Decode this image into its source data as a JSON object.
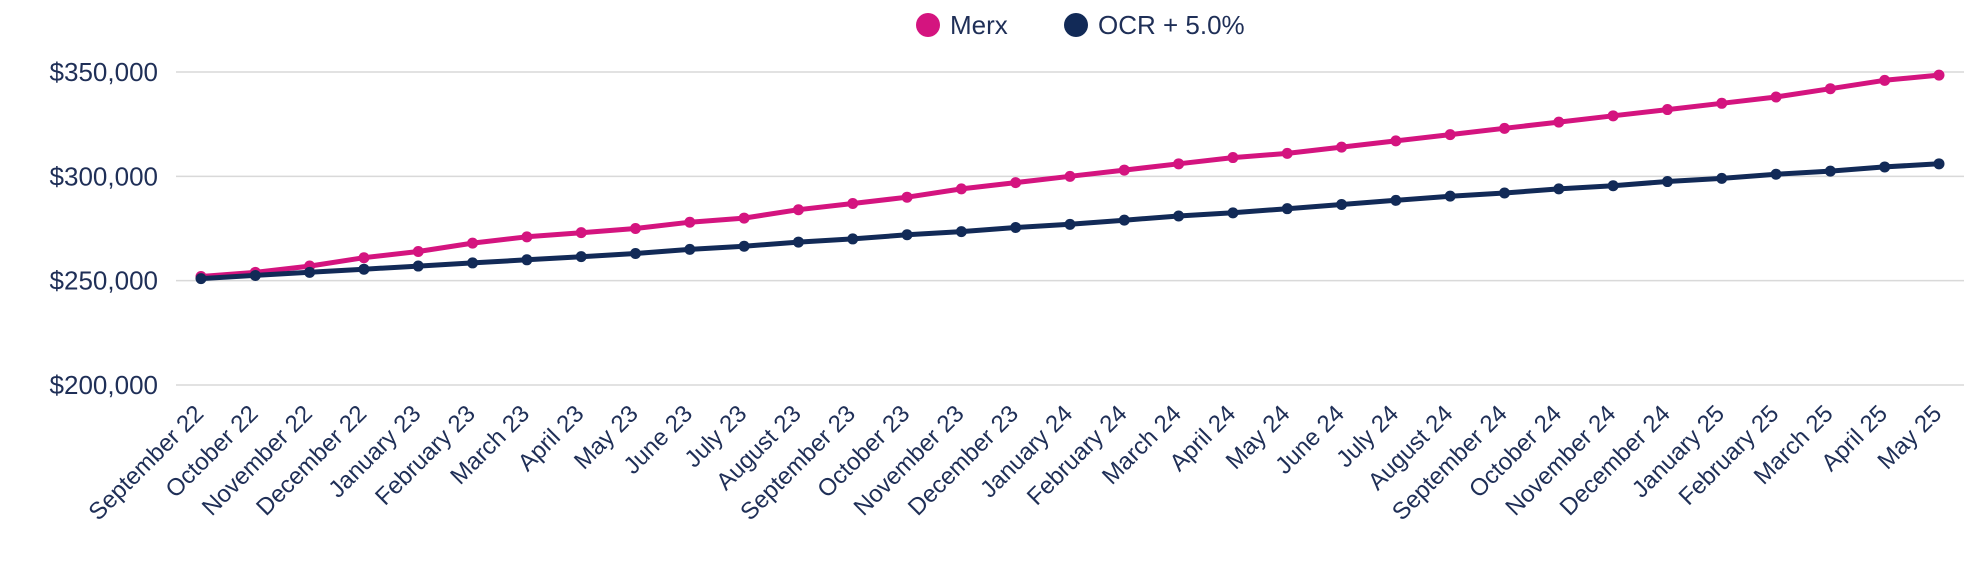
{
  "chart_data": {
    "type": "line",
    "title": "",
    "xlabel": "",
    "ylabel": "",
    "ylim": [
      200000,
      350000
    ],
    "yticks": [
      {
        "value": 200000,
        "label": "$200,000"
      },
      {
        "value": 250000,
        "label": "$250,000"
      },
      {
        "value": 300000,
        "label": "$300,000"
      },
      {
        "value": 350000,
        "label": "$350,000"
      }
    ],
    "grid": true,
    "legend_position": "top-center",
    "x": [
      "September 22",
      "October 22",
      "November 22",
      "December 22",
      "January 23",
      "February 23",
      "March 23",
      "April 23",
      "May 23",
      "June 23",
      "July 23",
      "August 23",
      "September 23",
      "October 23",
      "November 23",
      "December 23",
      "January 24",
      "February 24",
      "March 24",
      "April 24",
      "May 24",
      "June 24",
      "July 24",
      "August 24",
      "September 24",
      "October 24",
      "November 24",
      "December 24",
      "January 25",
      "February 25",
      "March 25",
      "April 25",
      "May 25"
    ],
    "series": [
      {
        "name": "Merx",
        "color": "#d4147f",
        "values": [
          252000,
          254000,
          257000,
          261000,
          264000,
          268000,
          271000,
          273000,
          275000,
          278000,
          280000,
          284000,
          287000,
          290000,
          294000,
          297000,
          300000,
          303000,
          306000,
          309000,
          311000,
          314000,
          317000,
          320000,
          323000,
          326000,
          329000,
          332000,
          335000,
          338000,
          342000,
          346000,
          348500
        ]
      },
      {
        "name": "OCR + 5.0%",
        "color": "#122a57",
        "values": [
          251000,
          252500,
          254000,
          255500,
          257000,
          258500,
          260000,
          261500,
          263000,
          265000,
          266500,
          268500,
          270000,
          272000,
          273500,
          275500,
          277000,
          279000,
          281000,
          282500,
          284500,
          286500,
          288500,
          290500,
          292000,
          294000,
          295500,
          297500,
          299000,
          301000,
          302500,
          304500,
          306000
        ]
      }
    ]
  }
}
